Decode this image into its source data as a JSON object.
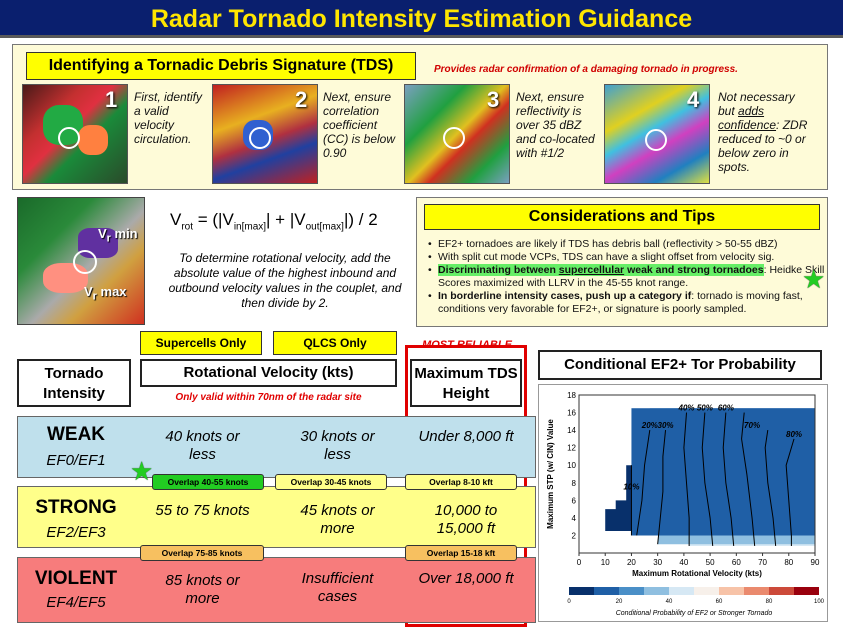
{
  "title": "Radar Tornado Intensity Estimation Guidance",
  "tds": {
    "header": "Identifying a Tornadic Debris Signature (TDS)",
    "note": "Provides radar confirmation of a damaging tornado in progress.",
    "steps": [
      {
        "num": "1",
        "text": "First, identify a valid velocity circulation."
      },
      {
        "num": "2",
        "text": "Next, ensure correlation coefficient (CC) is below 0.90"
      },
      {
        "num": "3",
        "text": "Next, ensure reflectivity is over 35 dBZ and co-located with #1/2"
      },
      {
        "num": "4",
        "text_a": "Not necessary but ",
        "text_b": "adds confidence",
        "text_c": ": ZDR reduced to ~0 or below zero in spots."
      }
    ]
  },
  "vrot": {
    "label_min": "V",
    "sub_min": "r",
    "word_min": "min",
    "label_max": "V",
    "sub_max": "r",
    "word_max": "max",
    "formula_lhs": "V",
    "formula_lhs_sub": "rot",
    "formula_a": " = (|V",
    "formula_a_sub": "in[max]",
    "formula_b": "| + |V",
    "formula_b_sub": "out[max]",
    "formula_c": "|) / 2",
    "description": "To determine rotational velocity, add the absolute value of the highest inbound and outbound velocity values in the couplet, and then divide by 2."
  },
  "tips": {
    "header": "Considerations and Tips",
    "item1": "EF2+ tornadoes are likely if TDS has debris ball (reflectivity > 50-55 dBZ)",
    "item2": "With split cut mode VCPs, TDS can have a slight offset from velocity sig.",
    "item3_a": "Discriminating between ",
    "item3_u": "supercellular",
    "item3_b": " weak and strong tornadoes",
    "item3_c": ": Heidke Skill Scores maximized with LLRV in the 45-55 knot range.",
    "item4_bold": "In borderline intensity cases, push up a category if",
    "item4_rest": ": tornado is moving fast, conditions very favorable for EF2+, or signature is poorly sampled."
  },
  "table": {
    "tag_supercell": "Supercells Only",
    "tag_qlcs": "QLCS Only",
    "tag_most_reliable": "MOST RELIABLE",
    "hdr_intensity": "Tornado Intensity",
    "hdr_rotvel": "Rotational Velocity (kts)",
    "hdr_rotvel_note": "Only valid within 70nm of the radar site",
    "hdr_tds": "Maximum TDS Height",
    "rows": [
      {
        "cat": "WEAK",
        "ef": "EF0/EF1",
        "sc": "40 knots or less",
        "ql": "30 knots or less",
        "tds": "Under 8,000 ft"
      },
      {
        "cat": "STRONG",
        "ef": "EF2/EF3",
        "sc": "55 to 75 knots",
        "ql": "45 knots or more",
        "tds": "10,000 to 15,000 ft"
      },
      {
        "cat": "VIOLENT",
        "ef": "EF4/EF5",
        "sc": "85 knots or more",
        "ql": "Insufficient cases",
        "tds": "Over 18,000 ft"
      }
    ],
    "overlap_sc_1": "Overlap 40-55 knots",
    "overlap_ql_1": "Overlap 30-45 knots",
    "overlap_tds_1": "Overlap 8-10 kft",
    "overlap_sc_2": "Overlap 75-85 knots",
    "overlap_tds_2": "Overlap 15-18 kft"
  },
  "chart_title": "Conditional EF2+ Tor Probability",
  "chart_data": {
    "type": "heatmap",
    "title": "Conditional EF2+ Tor Probability",
    "xlabel": "Maximum Rotational Velocity (kts)",
    "ylabel": "Maximum STP (w/ CIN) Value",
    "xlim": [
      0,
      90
    ],
    "ylim": [
      0,
      18
    ],
    "xticks": [
      0,
      10,
      20,
      30,
      40,
      50,
      60,
      70,
      80,
      90
    ],
    "yticks": [
      2,
      4,
      6,
      8,
      10,
      12,
      14,
      16,
      18
    ],
    "contour_labels": [
      "10%",
      "20%",
      "30%",
      "40%",
      "50%",
      "60%",
      "70%",
      "80%"
    ],
    "colorbar_ticks": [
      "0",
      "20",
      "40",
      "60",
      "80",
      "100"
    ],
    "colorbar_label": "Conditional Probability of EF2 or Stronger Tornado",
    "colors": [
      "#08306b",
      "#1f5fa6",
      "#4a8fc7",
      "#8fbfe0",
      "#d6e8f4",
      "#f7f0ea",
      "#f7c3a8",
      "#ea8a6e",
      "#cc4a3a",
      "#99000d"
    ]
  },
  "colors": {
    "title_bg": "#0a1f6e",
    "title_fg": "#ffe600",
    "weak": "#bfe0ec",
    "strong": "#ffff8a",
    "violent": "#f77c7c"
  }
}
